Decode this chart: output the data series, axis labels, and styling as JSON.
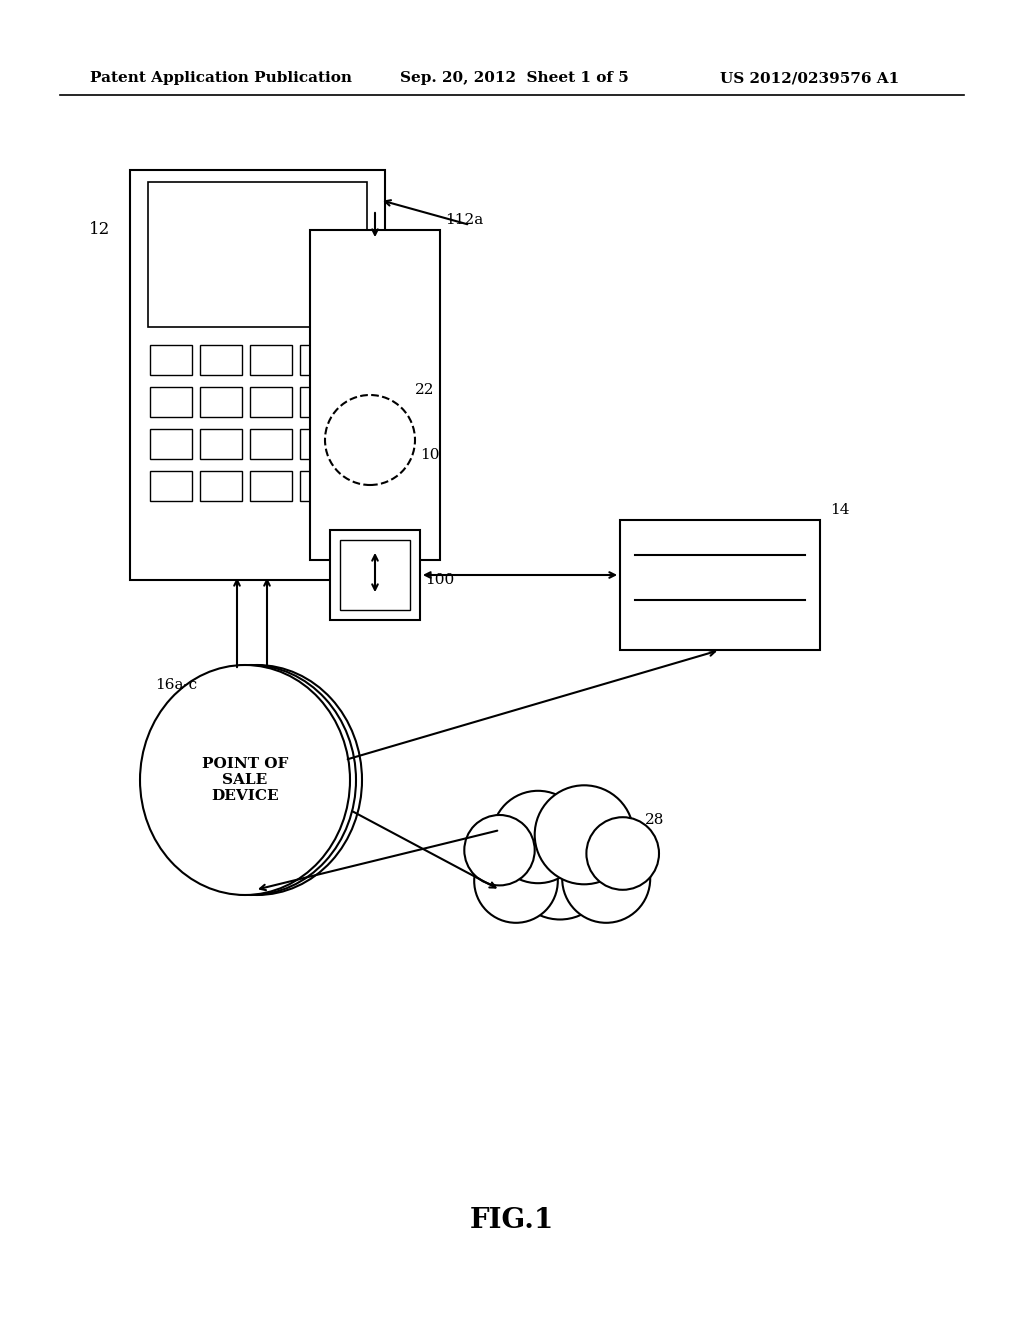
{
  "bg_color": "#ffffff",
  "header_text": "Patent Application Publication",
  "header_date": "Sep. 20, 2012  Sheet 1 of 5",
  "header_patent": "US 2012/0239576 A1",
  "fig_label": "FIG.1",
  "label_12": "12",
  "label_112a": "112a",
  "label_22": "22",
  "label_10": "10",
  "label_100": "100",
  "label_14": "14",
  "label_16ac": "16a-c",
  "label_28": "28",
  "pos_text": "POINT OF\nSALE\nDEVICE"
}
